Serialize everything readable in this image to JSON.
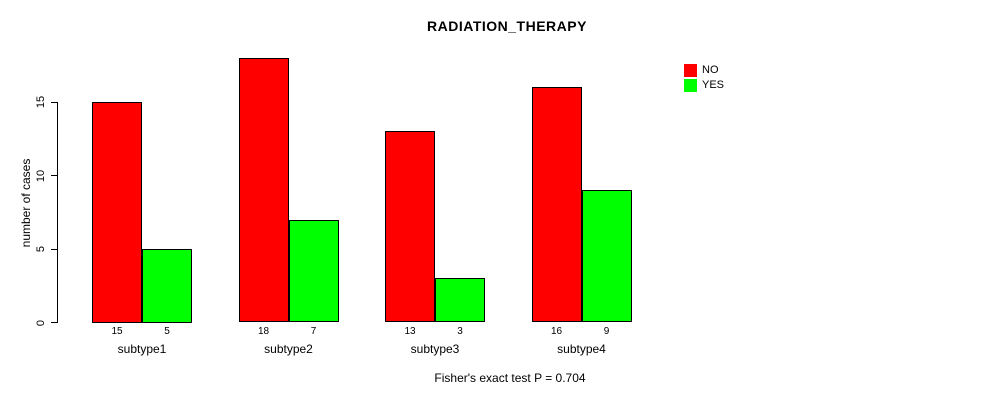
{
  "title": "RADIATION_THERAPY",
  "ylabel": "number of cases",
  "caption": "Fisher's exact test P = 0.704",
  "legend": {
    "position": "top-right",
    "items": [
      {
        "label": "NO",
        "color": "#ff0000"
      },
      {
        "label": "YES",
        "color": "#00ff00"
      }
    ]
  },
  "chart_data": {
    "type": "bar",
    "title": "RADIATION_THERAPY",
    "xlabel": "",
    "ylabel": "number of cases",
    "categories": [
      "subtype1",
      "subtype2",
      "subtype3",
      "subtype4"
    ],
    "series": [
      {
        "name": "NO",
        "color": "#ff0000",
        "values": [
          15,
          18,
          13,
          16
        ]
      },
      {
        "name": "YES",
        "color": "#00ff00",
        "values": [
          5,
          7,
          3,
          9
        ]
      }
    ],
    "bar_value_labels": [
      [
        "15",
        "5"
      ],
      [
        "18",
        "7"
      ],
      [
        "13",
        "3"
      ],
      [
        "16",
        "9"
      ]
    ],
    "yticks": [
      0,
      5,
      10,
      15
    ],
    "ylim": [
      0,
      18.6
    ],
    "grid": false,
    "legend_position": "top-right",
    "annotation": "Fisher's exact test P = 0.704"
  }
}
